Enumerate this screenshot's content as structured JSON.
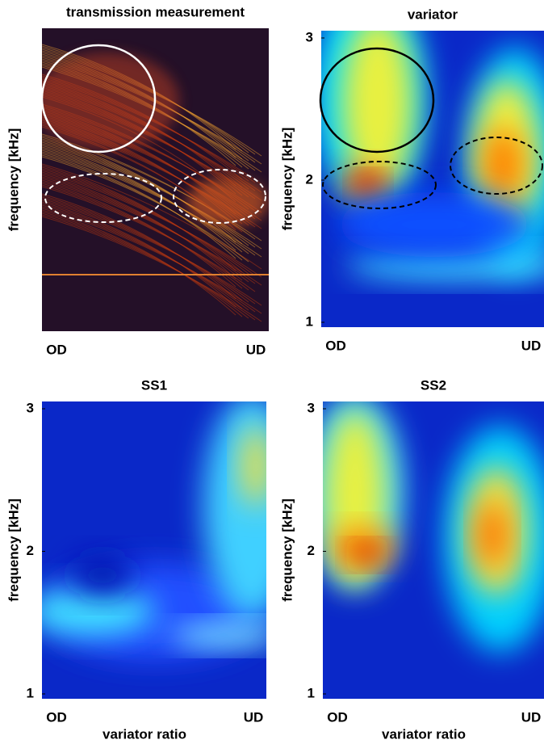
{
  "chart_data": [
    {
      "type": "heatmap",
      "title": "transmission measurement",
      "y_label": "frequency  [kHz]",
      "categories": [
        "OD",
        "UD"
      ]
    },
    {
      "type": "heatmap",
      "title": "variator",
      "y_label": "frequency  [kHz]",
      "categories": [
        "OD",
        "UD"
      ],
      "ylim": [
        1,
        3
      ],
      "yticks": [
        1,
        2,
        3
      ]
    },
    {
      "type": "heatmap",
      "title": "SS1",
      "y_label": "frequency  [kHz]",
      "x_label": "variator ratio",
      "categories": [
        "OD",
        "UD"
      ],
      "ylim": [
        1,
        3
      ],
      "yticks": [
        1,
        2,
        3
      ]
    },
    {
      "type": "heatmap",
      "title": "SS2",
      "y_label": "frequency  [kHz]",
      "x_label": "variator ratio",
      "categories": [
        "OD",
        "UD"
      ],
      "ylim": [
        1,
        3
      ],
      "yticks": [
        1,
        2,
        3
      ]
    }
  ]
}
